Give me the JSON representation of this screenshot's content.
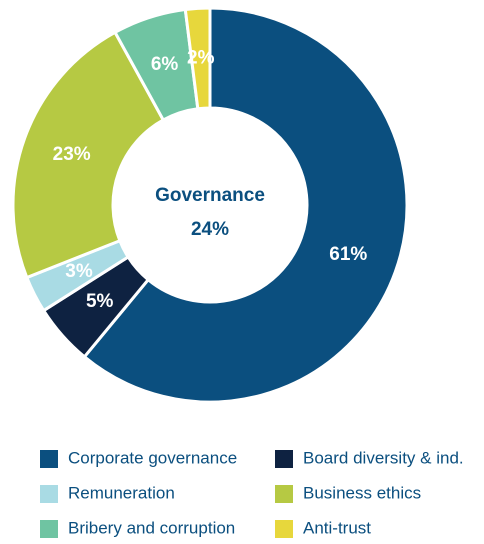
{
  "chart_data": {
    "type": "donut",
    "annotations": [
      "Governance",
      "24%"
    ],
    "categories": [
      "Corporate governance",
      "Board diversity & ind.",
      "Remuneration",
      "Business ethics",
      "Bribery and corruption",
      "Anti-trust"
    ],
    "values": [
      61,
      5,
      3,
      23,
      6,
      2
    ],
    "value_labels": [
      "61%",
      "5%",
      "3%",
      "23%",
      "6%",
      "2%"
    ],
    "colors": [
      "#0b4f7f",
      "#0e2241",
      "#a9dbe4",
      "#b6c943",
      "#6fc4a2",
      "#e7d73c"
    ],
    "legend": "bottom"
  }
}
